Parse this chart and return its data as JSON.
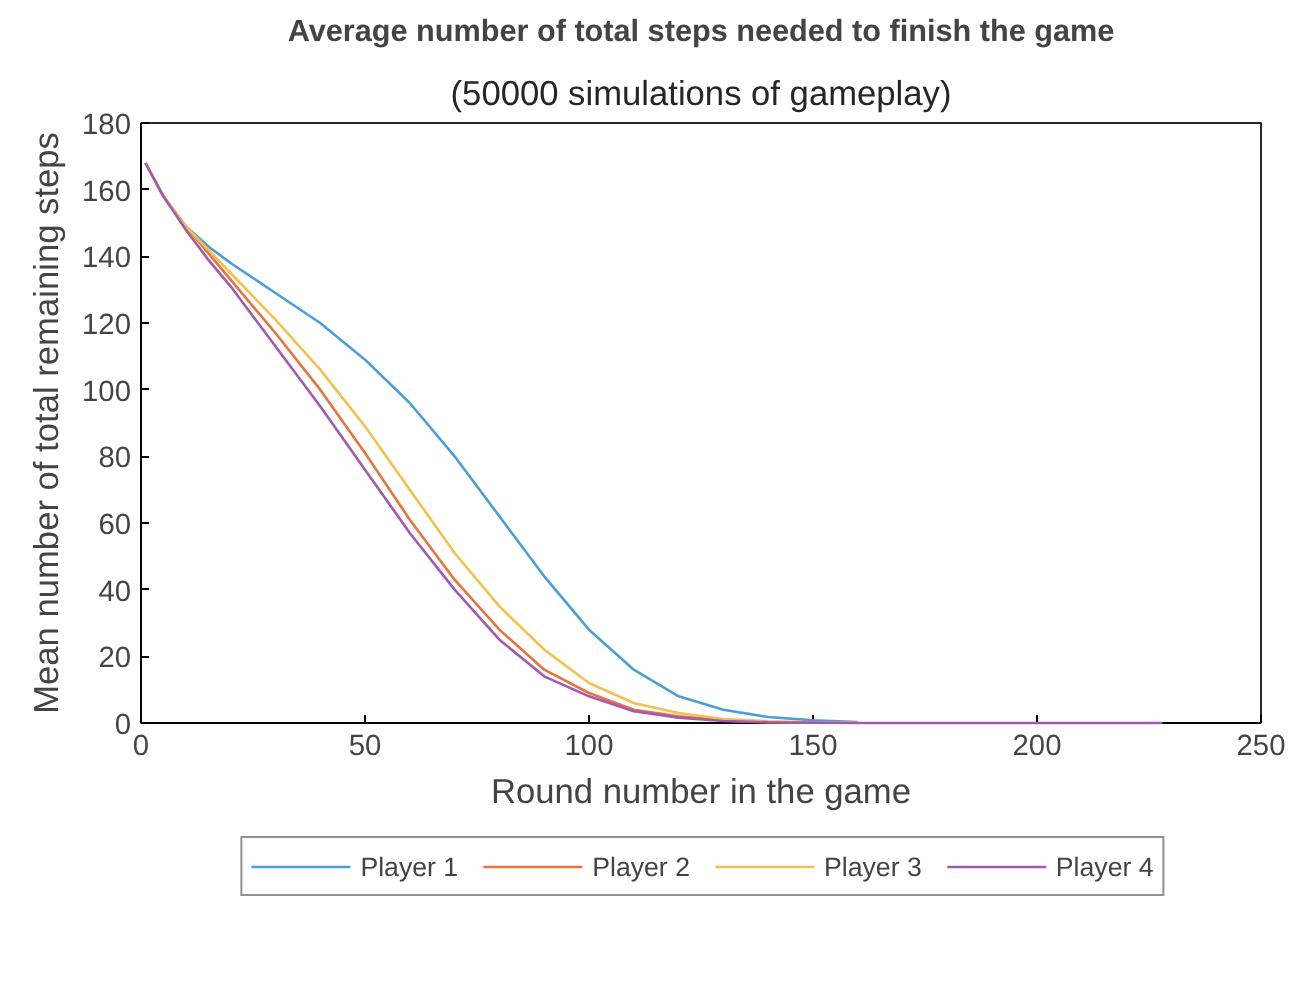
{
  "chart_data": {
    "type": "line",
    "title": "Average number of total steps needed to finish the game",
    "subtitle": "(50000 simulations of gameplay)",
    "xlabel": "Round number in the game",
    "ylabel": "Mean number of total remaining steps",
    "x": [
      1,
      5,
      10,
      15,
      20,
      30,
      40,
      50,
      60,
      70,
      80,
      90,
      100,
      110,
      120,
      130,
      140,
      150,
      160,
      180,
      200,
      228
    ],
    "series": [
      {
        "name": "Player 1",
        "color": "#4a9fd8",
        "values": [
          168,
          158,
          149,
          143,
          138,
          129,
          120,
          109,
          96,
          80,
          62,
          44,
          28,
          16,
          8,
          4,
          1.8,
          0.8,
          0.3,
          null,
          null,
          null
        ]
      },
      {
        "name": "Player 2",
        "color": "#e8743b",
        "values": [
          168,
          158,
          149,
          141,
          133,
          117,
          100,
          81,
          61,
          43,
          28,
          16,
          9,
          4,
          2,
          0.8,
          0.3,
          0.1,
          null,
          null,
          null,
          null
        ]
      },
      {
        "name": "Player 3",
        "color": "#f2c14e",
        "values": [
          168,
          158,
          149,
          142,
          135,
          121,
          106,
          89,
          70,
          51,
          35,
          22,
          12,
          6,
          3,
          1.2,
          0.5,
          0.2,
          0.1,
          null,
          null,
          null
        ]
      },
      {
        "name": "Player 4",
        "color": "#a15ab0",
        "values": [
          168,
          158,
          148,
          139,
          131,
          113,
          95,
          76,
          57,
          40,
          25,
          14,
          8,
          3.5,
          1.6,
          0.6,
          0.2,
          0.1,
          0,
          0,
          0,
          0
        ]
      }
    ],
    "xlim": [
      0,
      250
    ],
    "xticks": [
      0,
      50,
      100,
      150,
      200,
      250
    ],
    "ylim": [
      0,
      180
    ],
    "yticks": [
      0,
      20,
      40,
      60,
      80,
      100,
      120,
      140,
      160,
      180
    ],
    "grid": false,
    "legend": "bottom",
    "marker": "none",
    "line_style": "solid"
  }
}
